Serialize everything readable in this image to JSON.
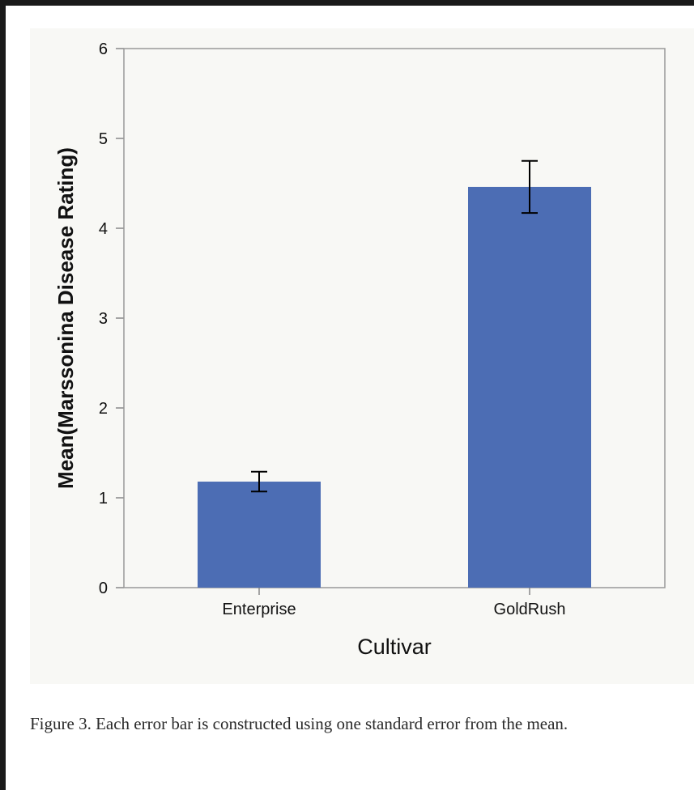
{
  "chart_data": {
    "type": "bar",
    "categories": [
      "Enterprise",
      "GoldRush"
    ],
    "values": [
      1.18,
      4.46
    ],
    "error": [
      0.11,
      0.29
    ],
    "xlabel": "Cultivar",
    "ylabel": "Mean(Marssonina Disease Rating)",
    "ylim": [
      0,
      6
    ],
    "yticks": [
      0,
      1,
      2,
      3,
      4,
      5,
      6
    ],
    "bar_color": "#4c6db4",
    "grid": false
  },
  "caption": "Figure 3.  Each error bar is constructed using one standard error from the mean."
}
